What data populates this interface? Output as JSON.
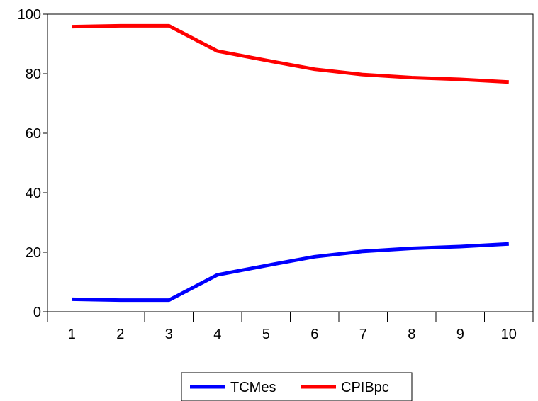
{
  "chart_data": {
    "type": "line",
    "title": "",
    "xlabel": "",
    "ylabel": "",
    "categories": [
      "1",
      "2",
      "3",
      "4",
      "5",
      "6",
      "7",
      "8",
      "9",
      "10"
    ],
    "series": [
      {
        "name": "TCMes",
        "color": "#0000ff",
        "values": [
          4.2,
          3.9,
          3.9,
          12.4,
          15.5,
          18.5,
          20.3,
          21.3,
          21.9,
          22.8
        ]
      },
      {
        "name": "CPIBpc",
        "color": "#ff0000",
        "values": [
          95.8,
          96.1,
          96.1,
          87.6,
          84.5,
          81.5,
          79.7,
          78.7,
          78.1,
          77.2
        ]
      }
    ],
    "ylim": [
      0,
      100
    ],
    "yticks": [
      0,
      20,
      40,
      60,
      80,
      100
    ],
    "grid": false,
    "legend_position": "bottom-center"
  }
}
